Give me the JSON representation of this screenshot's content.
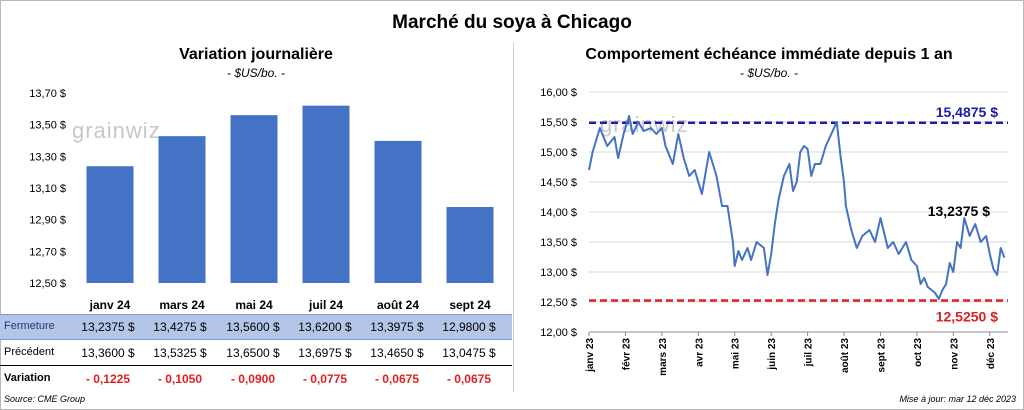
{
  "title": "Marché du soya à Chicago",
  "left": {
    "title": "Variation  journalière",
    "subtitle": "- $US/bo. -",
    "watermark": "grainwiz"
  },
  "right": {
    "title": "Comportement  échéance immédiate depuis 1 an",
    "subtitle": "- $US/bo. -",
    "watermark": "grainwiz",
    "high_label": "15,4875 $",
    "low_label": "12,5250 $",
    "last_label": "13,2375 $"
  },
  "table": {
    "rows": [
      {
        "label": "Fermeture",
        "cells": [
          "13,2375  $",
          "13,4275  $",
          "13,5600  $",
          "13,6200  $",
          "13,3975  $",
          "12,9800  $"
        ]
      },
      {
        "label": "Précédent",
        "cells": [
          "13,3600  $",
          "13,5325  $",
          "13,6500  $",
          "13,6975  $",
          "13,4650  $",
          "13,0475  $"
        ]
      },
      {
        "label": "Variation",
        "cells": [
          "- 0,1225",
          "- 0,1050",
          "- 0,0900",
          "- 0,0775",
          "- 0,0675",
          "- 0,0675"
        ]
      }
    ]
  },
  "footer": {
    "source": "Source: CME Group",
    "updated": "Mise à jour: mar 12 déc 2023"
  },
  "colors": {
    "bar": "#4472c4",
    "line": "#4472c4",
    "high_line": "#1c1ca8",
    "low_line": "#e02020",
    "negative": "#e02020",
    "header_fill": "#b4c6e7"
  },
  "chart_data": [
    {
      "type": "bar",
      "categories": [
        "janv 24",
        "mars 24",
        "mai 24",
        "juil 24",
        "août 24",
        "sept 24"
      ],
      "values": [
        13.2375,
        13.4275,
        13.56,
        13.62,
        13.3975,
        12.98
      ],
      "ylim": [
        12.5,
        13.7
      ],
      "yticks": [
        "12,50 $",
        "12,70 $",
        "12,90 $",
        "13,10 $",
        "13,30 $",
        "13,50 $",
        "13,70 $"
      ],
      "grid": false
    },
    {
      "type": "line",
      "xtick_labels": [
        "janv 23",
        "févr 23",
        "mars 23",
        "avr 23",
        "mai 23",
        "juin 23",
        "juil 23",
        "août 23",
        "sept 23",
        "oct 23",
        "nov 23",
        "déc 23"
      ],
      "yticks": [
        "12,00 $",
        "12,50 $",
        "13,00 $",
        "13,50 $",
        "14,00 $",
        "14,50 $",
        "15,00 $",
        "15,50 $",
        "16,00 $"
      ],
      "ylim": [
        12.0,
        16.0
      ],
      "high": 15.4875,
      "low": 12.525,
      "series": [
        {
          "x": [
            0,
            0.1,
            0.3,
            0.5,
            0.7,
            0.8,
            0.95,
            1.0,
            1.1,
            1.2,
            1.35,
            1.5,
            1.7,
            1.85,
            2.0,
            2.1,
            2.3,
            2.45,
            2.6,
            2.75,
            2.9,
            3.0,
            3.1,
            3.3,
            3.5,
            3.65,
            3.8,
            3.95,
            4.0,
            4.1,
            4.2,
            4.35,
            4.45,
            4.6,
            4.8,
            4.9,
            5.0,
            5.1,
            5.2,
            5.35,
            5.5,
            5.6,
            5.7,
            5.8,
            5.9,
            6.0,
            6.1,
            6.2,
            6.35,
            6.5,
            6.65,
            6.8,
            6.9,
            7.0,
            7.05,
            7.2,
            7.35,
            7.5,
            7.7,
            7.85,
            8.0,
            8.2,
            8.35,
            8.5,
            8.7,
            8.85,
            9.0,
            9.1,
            9.2,
            9.3,
            9.4,
            9.5,
            9.6,
            9.7,
            9.8,
            9.9,
            10.0,
            10.1,
            10.2,
            10.3,
            10.45,
            10.6,
            10.75,
            10.9,
            11.0,
            11.1,
            11.2,
            11.3,
            11.4
          ],
          "y": [
            14.7,
            15.0,
            15.4,
            15.1,
            15.25,
            14.9,
            15.3,
            15.4,
            15.6,
            15.3,
            15.5,
            15.35,
            15.4,
            15.3,
            15.4,
            15.1,
            14.8,
            15.3,
            14.9,
            14.6,
            14.7,
            14.5,
            14.3,
            15.0,
            14.6,
            14.1,
            14.1,
            13.5,
            13.1,
            13.35,
            13.2,
            13.4,
            13.2,
            13.5,
            13.4,
            12.95,
            13.3,
            13.8,
            14.2,
            14.6,
            14.8,
            14.35,
            14.5,
            15.0,
            15.1,
            15.05,
            14.6,
            14.8,
            14.8,
            15.1,
            15.3,
            15.5,
            14.95,
            14.5,
            14.1,
            13.7,
            13.4,
            13.6,
            13.7,
            13.5,
            13.9,
            13.4,
            13.5,
            13.3,
            13.5,
            13.2,
            13.1,
            12.8,
            12.9,
            12.75,
            12.7,
            12.65,
            12.55,
            12.7,
            12.8,
            13.15,
            13.0,
            13.5,
            13.4,
            13.9,
            13.6,
            13.8,
            13.5,
            13.6,
            13.3,
            13.05,
            12.95,
            13.4,
            13.24
          ]
        }
      ]
    }
  ]
}
